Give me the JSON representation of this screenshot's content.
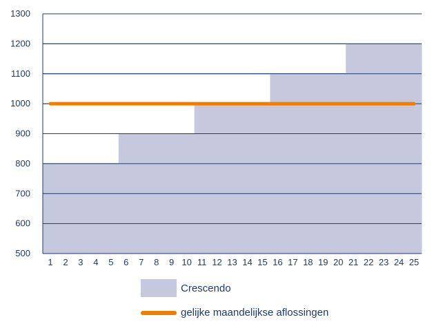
{
  "chart_data": {
    "type": "area",
    "title": "",
    "xlabel": "",
    "ylabel": "",
    "x": [
      1,
      2,
      3,
      4,
      5,
      6,
      7,
      8,
      9,
      10,
      11,
      12,
      13,
      14,
      15,
      16,
      17,
      18,
      19,
      20,
      21,
      22,
      23,
      24,
      25
    ],
    "ylim": [
      500,
      1300
    ],
    "yticks": [
      500,
      600,
      700,
      800,
      900,
      1000,
      1100,
      1200,
      1300
    ],
    "grid": true,
    "legend_position": "bottom",
    "series": [
      {
        "name": "Crescendo",
        "type": "step-area",
        "color": "#c6c8de",
        "values": [
          800,
          800,
          800,
          800,
          800,
          900,
          900,
          900,
          900,
          900,
          1000,
          1000,
          1000,
          1000,
          1000,
          1100,
          1100,
          1100,
          1100,
          1100,
          1200,
          1200,
          1200,
          1200,
          1200
        ]
      },
      {
        "name": "gelijke maandelijkse aflossingen",
        "type": "line",
        "color": "#f07d00",
        "values": [
          1000,
          1000,
          1000,
          1000,
          1000,
          1000,
          1000,
          1000,
          1000,
          1000,
          1000,
          1000,
          1000,
          1000,
          1000,
          1000,
          1000,
          1000,
          1000,
          1000,
          1000,
          1000,
          1000,
          1000,
          1000
        ]
      }
    ]
  },
  "colors": {
    "axis": "#1f3a6b",
    "grid": "#1f3a6b",
    "text": "#1f3a6b"
  }
}
